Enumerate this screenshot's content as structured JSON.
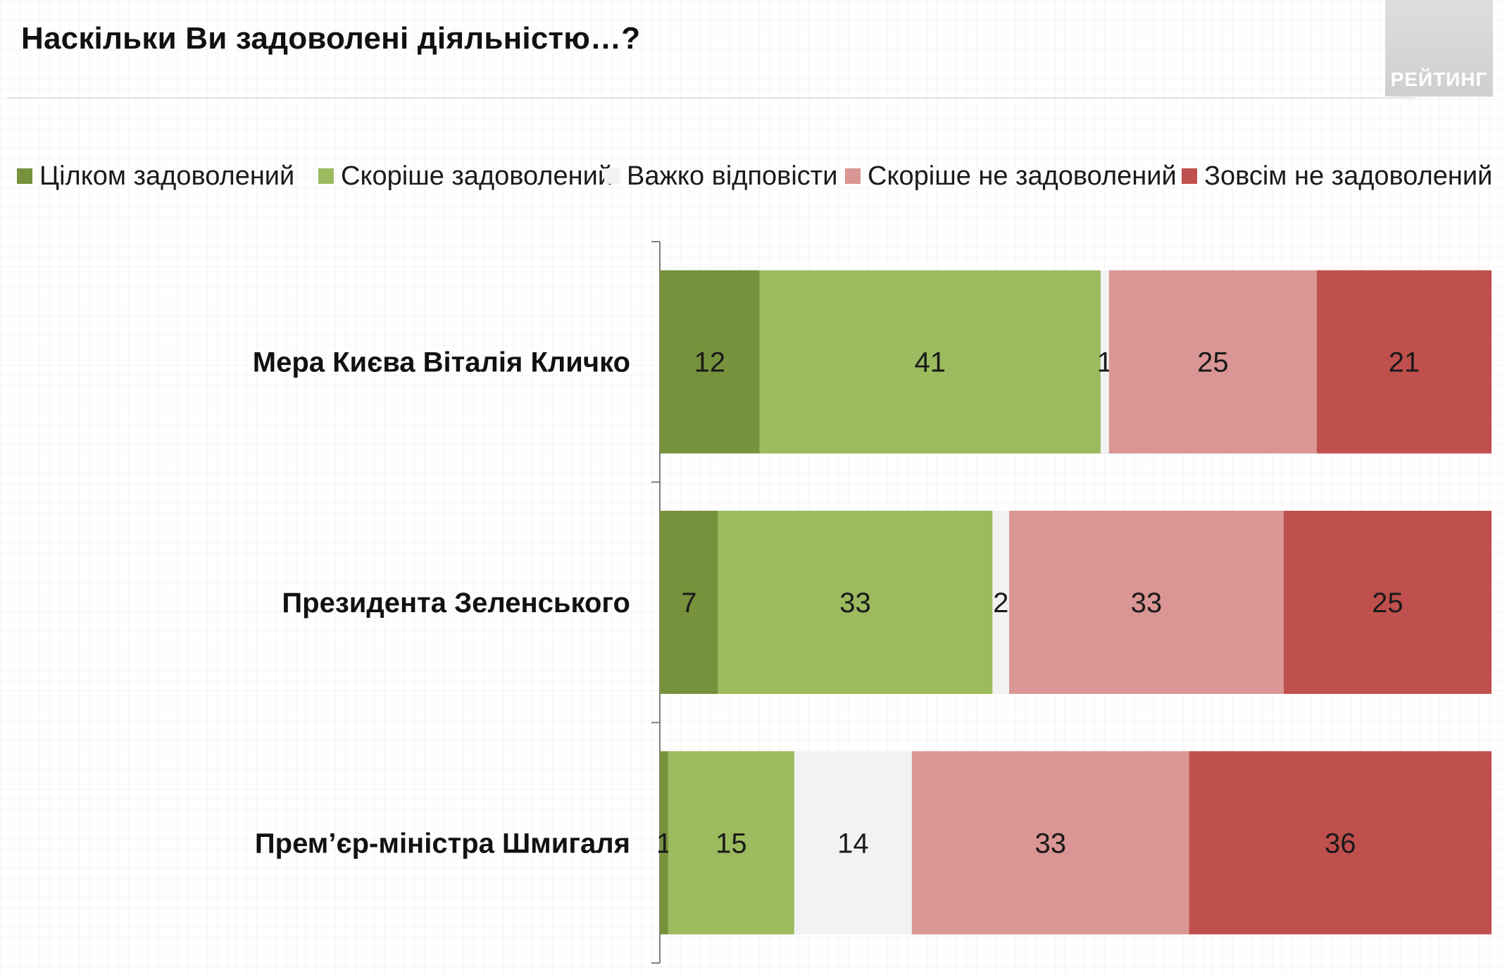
{
  "header": {
    "title": "Наскільки Ви задоволені діяльністю…?",
    "brand": "РЕЙТИНГ"
  },
  "chart_data": {
    "type": "bar",
    "orientation": "horizontal",
    "stacked": true,
    "normalized": true,
    "categories": [
      "Мера Києва Віталія Кличко",
      "Президента Зеленського",
      "Прем’єр-міністра Шмигаля"
    ],
    "series": [
      {
        "name": "Цілком задоволений",
        "values": [
          12,
          7,
          1
        ],
        "color": "#77923c"
      },
      {
        "name": "Скоріше задоволений",
        "values": [
          41,
          33,
          15
        ],
        "color": "#9bbb5e"
      },
      {
        "name": "Важко відповісти",
        "values": [
          1,
          2,
          14
        ],
        "color": "#f2f2f2"
      },
      {
        "name": "Скоріше не задоволений",
        "values": [
          25,
          33,
          33
        ],
        "color": "#d99694"
      },
      {
        "name": "Зовсім не задоволений",
        "values": [
          21,
          25,
          36
        ],
        "color": "#c0504d"
      }
    ],
    "legend_position": "top",
    "data_labels": true,
    "grid": false
  }
}
